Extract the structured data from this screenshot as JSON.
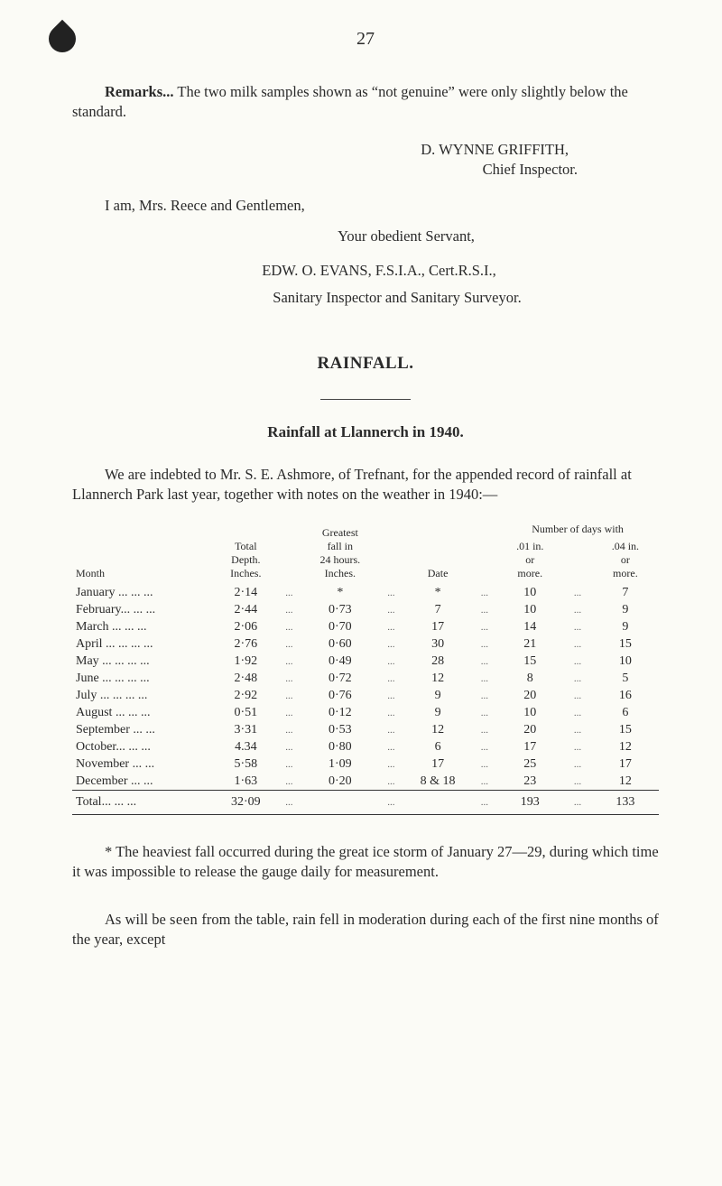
{
  "page_number": "27",
  "remarks": {
    "label": "Remarks...",
    "text": "The two milk samples shown as “not genuine” were only slightly below the standard."
  },
  "signature": {
    "name": "D. WYNNE GRIFFITH,",
    "title": "Chief Inspector.",
    "addressed": "I am, Mrs. Reece and Gentlemen,",
    "servant": "Your obedient Servant,",
    "edw": "EDW. O. EVANS, F.S.I.A., Cert.R.S.I.,",
    "role": "Sanitary Inspector and Sanitary Surveyor."
  },
  "rainfall": {
    "title": "RAINFALL.",
    "subtitle": "Rainfall at Llannerch in 1940.",
    "intro": "We are indebted to Mr. S. E. Ashmore, of Trefnant, for the appended record of rainfall at Llannerch Park last year, together with notes on the weather in 1940:—",
    "headers": {
      "month": "Month",
      "depth": {
        "l1": "Total",
        "l2": "Depth.",
        "l3": "Inches."
      },
      "fall": {
        "l1": "Greatest",
        "l2": "fall in",
        "l3": "24 hours.",
        "l4": "Inches."
      },
      "date": "Date",
      "days_head": "Number of days with",
      "d01": {
        "l1": ".01 in.",
        "l2": "or",
        "l3": "more."
      },
      "d04": {
        "l1": ".04 in.",
        "l2": "or",
        "l3": "more."
      }
    },
    "rows": [
      {
        "month": "January ... ... ...",
        "depth": "2·14",
        "fall": "*",
        "date": "*",
        "d01": "10",
        "d04": "7"
      },
      {
        "month": "February... ... ...",
        "depth": "2·44",
        "fall": "0·73",
        "date": "7",
        "d01": "10",
        "d04": "9"
      },
      {
        "month": "March  ... ... ...",
        "depth": "2·06",
        "fall": "0·70",
        "date": "17",
        "d01": "14",
        "d04": "9"
      },
      {
        "month": "April ... ... ... ...",
        "depth": "2·76",
        "fall": "0·60",
        "date": "30",
        "d01": "21",
        "d04": "15"
      },
      {
        "month": "May  ... ... ... ...",
        "depth": "1·92",
        "fall": "0·49",
        "date": "28",
        "d01": "15",
        "d04": "10"
      },
      {
        "month": "June ... ... ... ...",
        "depth": "2·48",
        "fall": "0·72",
        "date": "12",
        "d01": "8",
        "d04": "5"
      },
      {
        "month": "July  ... ... ... ...",
        "depth": "2·92",
        "fall": "0·76",
        "date": "9",
        "d01": "20",
        "d04": "16"
      },
      {
        "month": "August ... ... ...",
        "depth": "0·51",
        "fall": "0·12",
        "date": "9",
        "d01": "10",
        "d04": "6"
      },
      {
        "month": "September ... ...",
        "depth": "3·31",
        "fall": "0·53",
        "date": "12",
        "d01": "20",
        "d04": "15"
      },
      {
        "month": "October... ... ...",
        "depth": "4.34",
        "fall": "0·80",
        "date": "6",
        "d01": "17",
        "d04": "12"
      },
      {
        "month": "November ... ...",
        "depth": "5·58",
        "fall": "1·09",
        "date": "17",
        "d01": "25",
        "d04": "17"
      },
      {
        "month": "December ... ...",
        "depth": "1·63",
        "fall": "0·20",
        "date": "8 & 18",
        "d01": "23",
        "d04": "12"
      }
    ],
    "totals": {
      "label": "Total... ... ...",
      "depth": "32·09",
      "d01": "193",
      "d04": "133"
    },
    "footnote1": "* The heaviest fall occurred during the great ice storm of January 27—29, during which time it was impossible to release the gauge daily for measurement.",
    "footnote2_a": "As will be ",
    "footnote2_seen": "seen",
    "footnote2_b": " from the table, rain fell in moderation during each of the first nine months of the year, except"
  }
}
